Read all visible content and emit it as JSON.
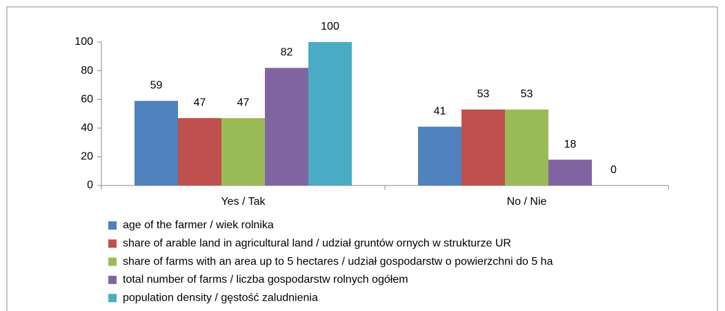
{
  "chart_data": {
    "type": "bar",
    "categories": [
      "Yes / Tak",
      "No / Nie"
    ],
    "series": [
      {
        "name": "age of the farmer / wiek rolnika",
        "color": "#4f81bd",
        "values": [
          59,
          41
        ]
      },
      {
        "name": "share of arable land in agricultural land / udział gruntów ornych w strukturze UR",
        "color": "#c0504d",
        "values": [
          47,
          53
        ]
      },
      {
        "name": "share of farms with an area up to 5 hectares / udział gospodarstw o powierzchni do 5 ha",
        "color": "#9bbb59",
        "values": [
          47,
          53
        ]
      },
      {
        "name": "total number of farms / liczba gospodarstw rolnych ogółem",
        "color": "#8064a2",
        "values": [
          82,
          18
        ]
      },
      {
        "name": "population density / gęstość zaludnienia",
        "color": "#4bacc6",
        "values": [
          100,
          0
        ]
      }
    ],
    "ylim": [
      0,
      100
    ],
    "yticks": [
      0,
      20,
      40,
      60,
      80,
      100
    ],
    "legend": "bottom",
    "grid": false
  }
}
